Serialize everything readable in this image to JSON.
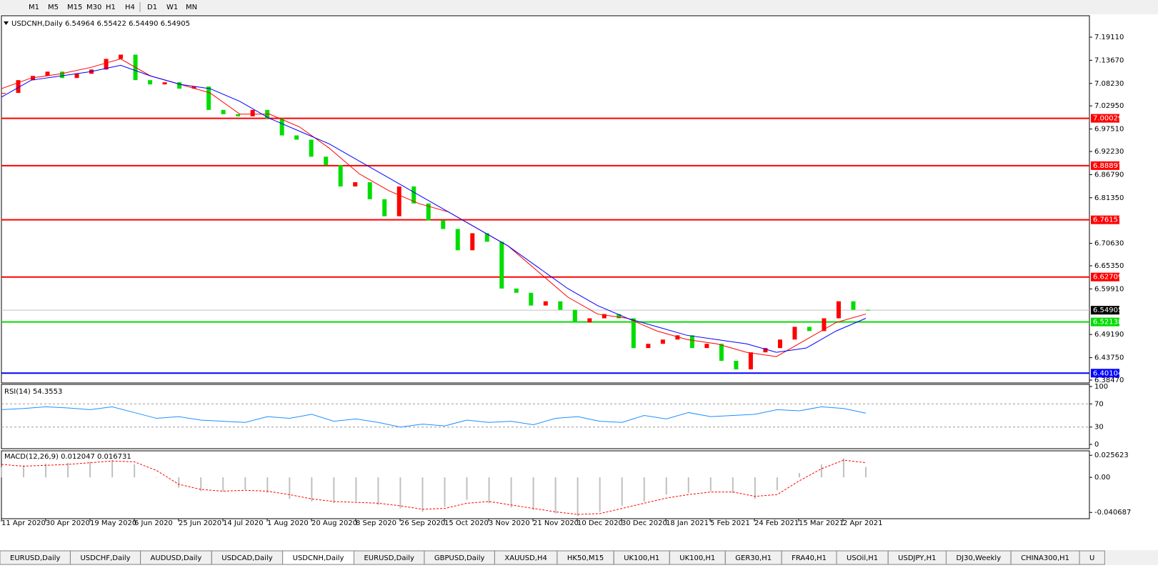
{
  "toolbar": {
    "timeframes": [
      "M1",
      "M5",
      "M15",
      "M30",
      "H1",
      "H4",
      "D1",
      "W1",
      "MN"
    ]
  },
  "chart_data": {
    "type": "candlestick",
    "title": "USDCNH,Daily 6.54964 6.55422 6.54490 6.54905",
    "x_labels": [
      "11 Apr 2020",
      "30 Apr 2020",
      "19 May 2020",
      "6 Jun 2020",
      "25 Jun 2020",
      "14 Jul 2020",
      "1 Aug 2020",
      "20 Aug 2020",
      "8 Sep 2020",
      "26 Sep 2020",
      "15 Oct 2020",
      "3 Nov 2020",
      "21 Nov 2020",
      "10 Dec 2020",
      "30 Dec 2020",
      "18 Jan 2021",
      "5 Feb 2021",
      "24 Feb 2021",
      "15 Mar 2021",
      "2 Apr 2021"
    ],
    "closes": [
      7.06,
      7.09,
      7.1,
      7.11,
      7.095,
      7.105,
      7.115,
      7.14,
      7.15,
      7.09,
      7.08,
      7.085,
      7.07,
      7.075,
      7.02,
      7.01,
      7.005,
      7.02,
      7.0,
      6.96,
      6.95,
      6.91,
      6.89,
      6.84,
      6.85,
      6.81,
      6.77,
      6.84,
      6.8,
      6.76,
      6.74,
      6.69,
      6.73,
      6.71,
      6.6,
      6.59,
      6.56,
      6.57,
      6.55,
      6.52,
      6.53,
      6.54,
      6.53,
      6.46,
      6.47,
      6.48,
      6.49,
      6.46,
      6.47,
      6.43,
      6.41,
      6.45,
      6.46,
      6.48,
      6.51,
      6.5,
      6.53,
      6.57,
      6.55,
      6.549
    ],
    "bull_color": "#ff0000",
    "bear_color": "#00dd00",
    "ylim": [
      6.3763,
      7.2415
    ],
    "yticks": [
      {
        "value": 7.1911,
        "label": "7.19110"
      },
      {
        "value": 7.1367,
        "label": "7.13670"
      },
      {
        "value": 7.0823,
        "label": "7.08230"
      },
      {
        "value": 7.0295,
        "label": "7.02950"
      },
      {
        "value": 6.9751,
        "label": "6.97510"
      },
      {
        "value": 6.9223,
        "label": "6.92230"
      },
      {
        "value": 6.8679,
        "label": "6.86790"
      },
      {
        "value": 6.8135,
        "label": "6.81350"
      },
      {
        "value": 6.7063,
        "label": "6.70630"
      },
      {
        "value": 6.6535,
        "label": "6.65350"
      },
      {
        "value": 6.5991,
        "label": "6.59910"
      },
      {
        "value": 6.4919,
        "label": "6.49190"
      },
      {
        "value": 6.4375,
        "label": "6.43750"
      },
      {
        "value": 6.3847,
        "label": "6.38470"
      }
    ],
    "moving_averages": [
      {
        "color": "#ff0000",
        "values": [
          7.07,
          7.095,
          7.105,
          7.12,
          7.14,
          7.1,
          7.08,
          7.06,
          7.01,
          7.01,
          6.98,
          6.93,
          6.87,
          6.83,
          6.8,
          6.78,
          6.74,
          6.7,
          6.64,
          6.58,
          6.54,
          6.53,
          6.5,
          6.48,
          6.47,
          6.45,
          6.44,
          6.48,
          6.52,
          6.54
        ]
      },
      {
        "color": "#0000ff",
        "values": [
          7.05,
          7.09,
          7.1,
          7.11,
          7.125,
          7.1,
          7.08,
          7.07,
          7.04,
          7.0,
          6.97,
          6.94,
          6.9,
          6.86,
          6.82,
          6.78,
          6.74,
          6.7,
          6.65,
          6.6,
          6.56,
          6.53,
          6.51,
          6.49,
          6.48,
          6.47,
          6.45,
          6.46,
          6.5,
          6.53
        ]
      }
    ],
    "levels": [
      {
        "value": 7.00029,
        "color": "#ff0000"
      },
      {
        "value": 6.88897,
        "color": "#ff0000"
      },
      {
        "value": 6.76157,
        "color": "#ff0000"
      },
      {
        "value": 6.62709,
        "color": "#ff0000"
      },
      {
        "value": 6.52138,
        "color": "#00dd00"
      },
      {
        "value": 6.40104,
        "color": "#0000ff"
      }
    ],
    "current_price": 6.54905,
    "indicators": [
      {
        "type": "line",
        "title": "RSI(14) 54.3553",
        "color": "#1e90ff",
        "ylim": [
          0,
          100
        ],
        "yticks": [
          100,
          70,
          30,
          0
        ],
        "levels": [
          70,
          30
        ],
        "values": [
          60,
          62,
          65,
          63,
          60,
          65,
          55,
          45,
          48,
          42,
          40,
          38,
          48,
          45,
          52,
          40,
          44,
          38,
          30,
          35,
          32,
          42,
          38,
          40,
          34,
          45,
          48,
          40,
          38,
          50,
          44,
          55,
          48,
          50,
          52,
          60,
          58,
          65,
          62,
          54
        ]
      },
      {
        "type": "macd",
        "title": "MACD(12,26,9) 0.012047 0.016731",
        "color": "#c0c0c0",
        "signal_color": "#ff0000",
        "ylim": [
          -0.04712,
          0.02996
        ],
        "yticks": [
          0.025623,
          {
            "value": 0,
            "label": "0.00"
          },
          -0.040687
        ],
        "histogram": [
          0.012,
          0.014,
          0.016,
          0.017,
          0.018,
          0.02,
          0.015,
          0.0,
          -0.012,
          -0.016,
          -0.016,
          -0.014,
          -0.018,
          -0.025,
          -0.028,
          -0.03,
          -0.028,
          -0.032,
          -0.036,
          -0.04,
          -0.034,
          -0.026,
          -0.03,
          -0.035,
          -0.038,
          -0.042,
          -0.045,
          -0.04,
          -0.033,
          -0.028,
          -0.02,
          -0.018,
          -0.016,
          -0.018,
          -0.025,
          -0.015,
          0.005,
          0.015,
          0.022,
          0.012
        ],
        "signal": [
          0.015,
          0.013,
          0.014,
          0.015,
          0.017,
          0.019,
          0.018,
          0.008,
          -0.008,
          -0.014,
          -0.016,
          -0.015,
          -0.016,
          -0.02,
          -0.025,
          -0.028,
          -0.029,
          -0.03,
          -0.033,
          -0.037,
          -0.036,
          -0.03,
          -0.028,
          -0.032,
          -0.036,
          -0.04,
          -0.043,
          -0.042,
          -0.036,
          -0.03,
          -0.024,
          -0.02,
          -0.017,
          -0.017,
          -0.022,
          -0.02,
          -0.004,
          0.01,
          0.02,
          0.017
        ]
      }
    ]
  },
  "tabs": {
    "items": [
      "EURUSD,Daily",
      "USDCHF,Daily",
      "AUDUSD,Daily",
      "USDCAD,Daily",
      "USDCNH,Daily",
      "EURUSD,Daily",
      "GBPUSD,Daily",
      "XAUUSD,H4",
      "HK50,M15",
      "UK100,H1",
      "UK100,H1",
      "GER30,H1",
      "FRA40,H1",
      "USOil,H1",
      "USDJPY,H1",
      "DJ30,Weekly",
      "CHINA300,H1",
      "U"
    ],
    "active": 4
  }
}
